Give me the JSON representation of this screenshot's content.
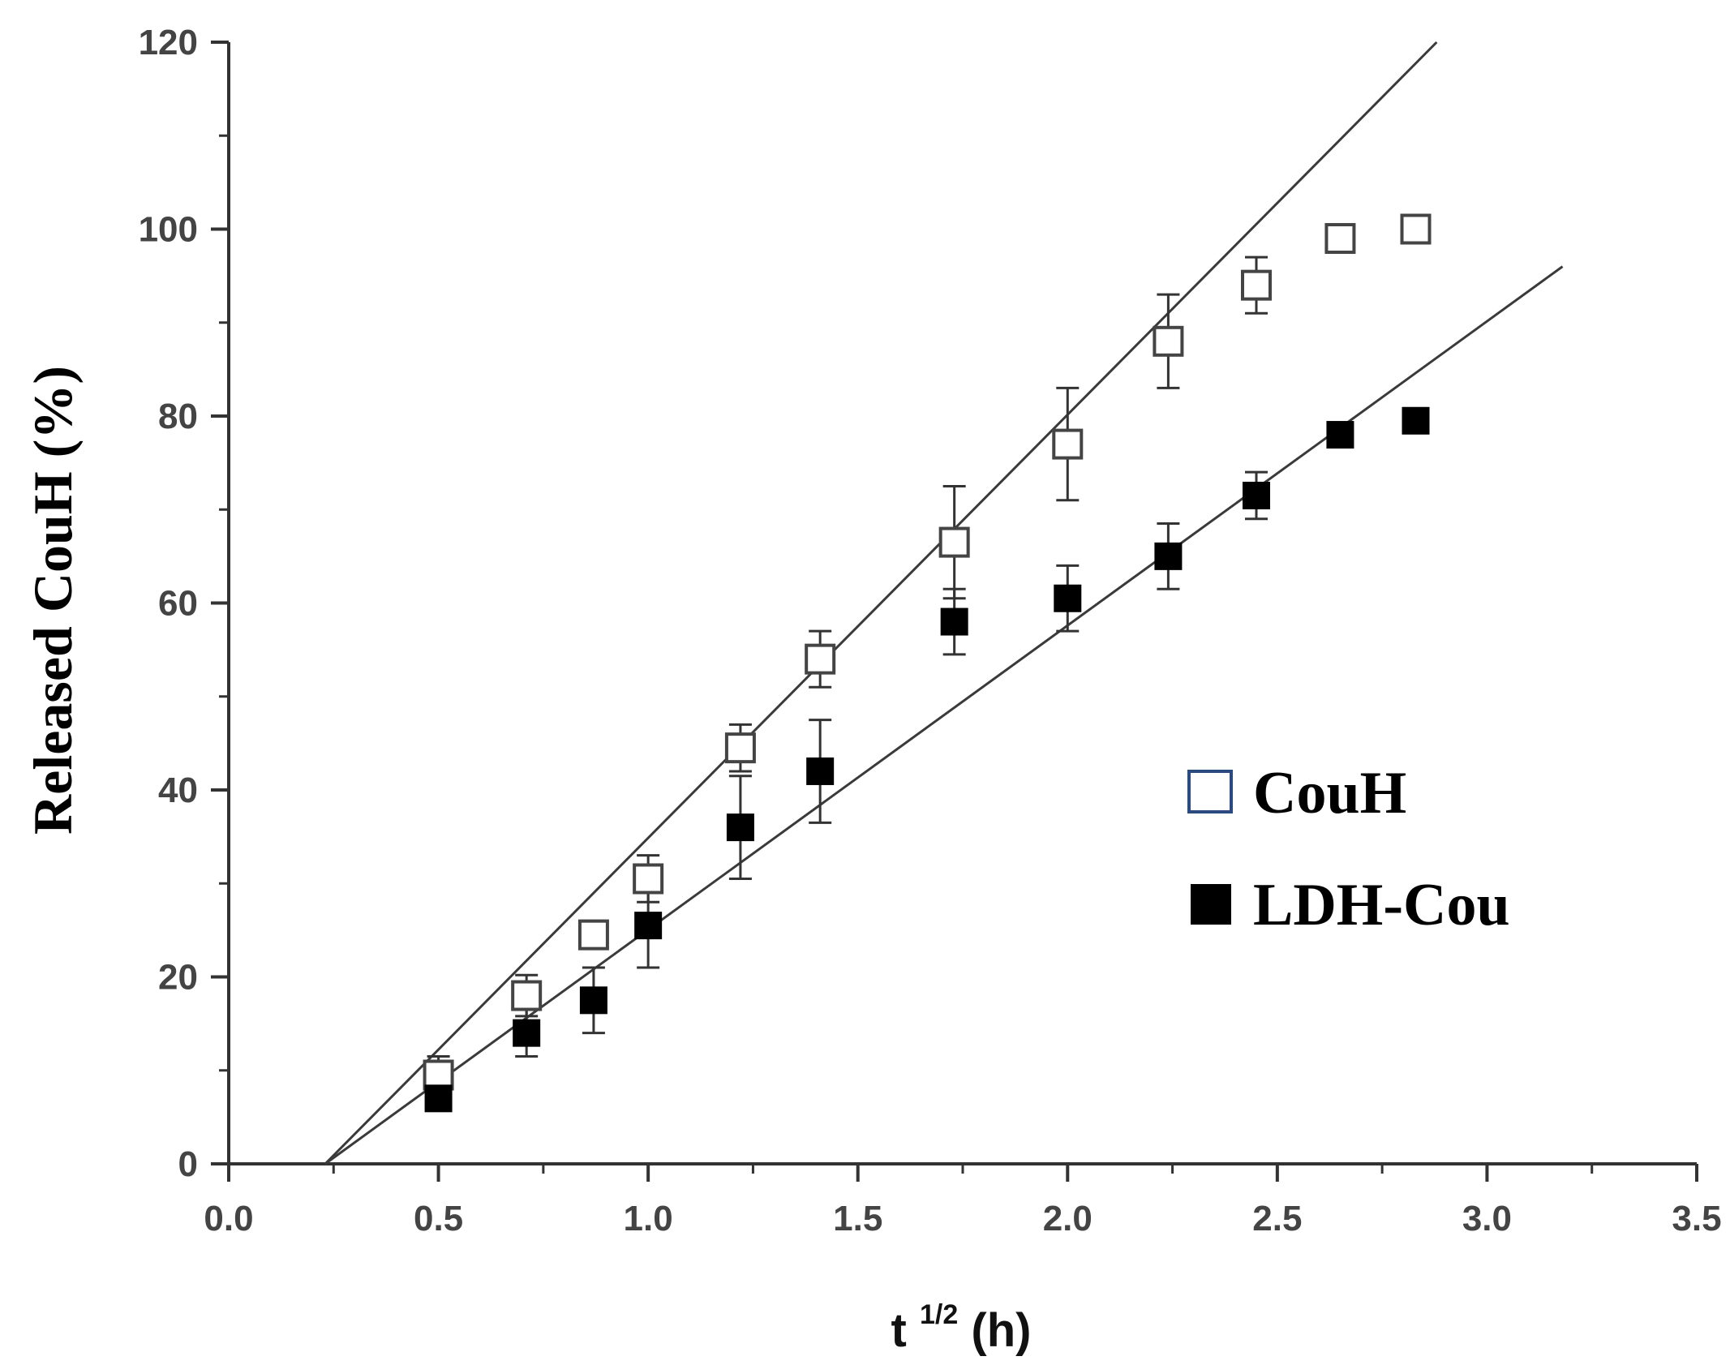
{
  "chart_data": {
    "type": "scatter",
    "title": "",
    "xlabel": {
      "base": "t",
      "sup": "1/2",
      "unit": " (h)"
    },
    "ylabel": "Released CouH (%)",
    "xlim": [
      0.0,
      3.5
    ],
    "ylim": [
      0,
      120
    ],
    "x_ticks": [
      "0.0",
      "0.5",
      "1.0",
      "1.5",
      "2.0",
      "2.5",
      "3.0",
      "3.5"
    ],
    "y_ticks": [
      "0",
      "20",
      "40",
      "60",
      "80",
      "100",
      "120"
    ],
    "grid": false,
    "legend_position": "right",
    "series": [
      {
        "name": "CouH",
        "marker": "open-square",
        "marker_color": "#2b4a80",
        "x": [
          0.5,
          0.71,
          0.87,
          1.0,
          1.22,
          1.41,
          1.73,
          2.0,
          2.24,
          2.45,
          2.65,
          2.83
        ],
        "y": [
          9.5,
          18,
          24.5,
          30.5,
          44.5,
          54,
          66.5,
          77,
          88,
          94,
          99,
          100
        ],
        "err": [
          2,
          2.2,
          1.5,
          2.5,
          2.5,
          3,
          6,
          6,
          5,
          3,
          1,
          0
        ],
        "fit": {
          "x": [
            0.23,
            2.88
          ],
          "y": [
            0,
            120
          ]
        }
      },
      {
        "name": "LDH-Cou",
        "marker": "filled-square",
        "marker_color": "#000000",
        "x": [
          0.5,
          0.71,
          0.87,
          1.0,
          1.22,
          1.41,
          1.73,
          2.0,
          2.24,
          2.45,
          2.65,
          2.83
        ],
        "y": [
          7,
          14,
          17.5,
          25.5,
          36,
          42,
          58,
          60.5,
          65,
          71.5,
          78,
          79.5
        ],
        "err": [
          1,
          2.5,
          3.5,
          4.5,
          5.5,
          5.5,
          3.5,
          3.5,
          3.5,
          2.5,
          0,
          0
        ],
        "fit": {
          "x": [
            0.23,
            3.18
          ],
          "y": [
            0,
            96
          ]
        }
      }
    ]
  }
}
